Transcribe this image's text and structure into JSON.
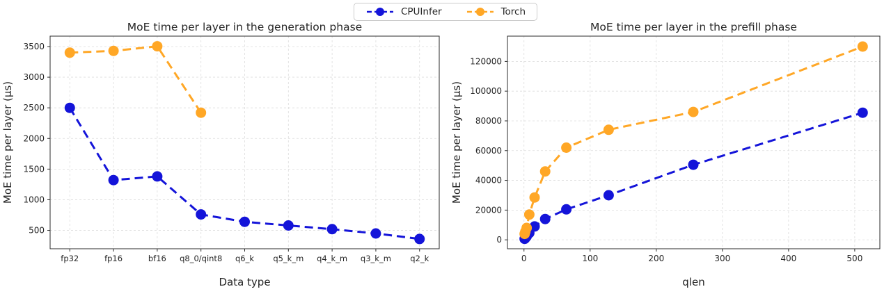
{
  "legend": {
    "items": [
      {
        "label": "CPUInfer",
        "color": "#1414d9"
      },
      {
        "label": "Torch",
        "color": "#ffa726"
      }
    ]
  },
  "chart_data": [
    {
      "type": "line",
      "title": "MoE time per layer in the generation phase",
      "xlabel": "Data type",
      "ylabel": "MoE time per layer (μs)",
      "x_type": "categorical",
      "categories": [
        "fp32",
        "fp16",
        "bf16",
        "q8_0/qint8",
        "q6_k",
        "q5_k_m",
        "q4_k_m",
        "q3_k_m",
        "q2_k"
      ],
      "yticks": [
        500,
        1000,
        1500,
        2000,
        2500,
        3000,
        3500
      ],
      "ylim": [
        200,
        3670
      ],
      "grid": true,
      "legend_position": "figure-top-center",
      "series": [
        {
          "name": "CPUInfer",
          "color": "#1414d9",
          "linestyle": "dashed",
          "marker": "circle",
          "values": [
            2500,
            1320,
            1380,
            760,
            640,
            580,
            520,
            450,
            360
          ]
        },
        {
          "name": "Torch",
          "color": "#ffa726",
          "linestyle": "dashed",
          "marker": "circle",
          "values": [
            3400,
            3430,
            3505,
            2420,
            null,
            null,
            null,
            null,
            null
          ]
        }
      ]
    },
    {
      "type": "line",
      "title": "MoE time per layer in the prefill phase",
      "xlabel": "qlen",
      "ylabel": "MoE time per layer (μs)",
      "x_type": "numeric",
      "x": [
        1,
        2,
        4,
        8,
        16,
        32,
        64,
        128,
        256,
        512
      ],
      "xticks": [
        0,
        100,
        200,
        300,
        400,
        500
      ],
      "xlim": [
        -25,
        538
      ],
      "yticks": [
        0,
        20000,
        40000,
        60000,
        80000,
        100000,
        120000
      ],
      "ylim": [
        -6000,
        137000
      ],
      "grid": true,
      "series": [
        {
          "name": "CPUInfer",
          "color": "#1414d9",
          "linestyle": "dashed",
          "marker": "circle",
          "values": [
            700,
            1200,
            2300,
            4600,
            9000,
            14000,
            20500,
            30000,
            50500,
            85500
          ]
        },
        {
          "name": "Torch",
          "color": "#ffa726",
          "linestyle": "dashed",
          "marker": "circle",
          "values": [
            4000,
            5500,
            8000,
            17000,
            28500,
            46000,
            62000,
            74000,
            86000,
            130000
          ]
        }
      ]
    }
  ]
}
